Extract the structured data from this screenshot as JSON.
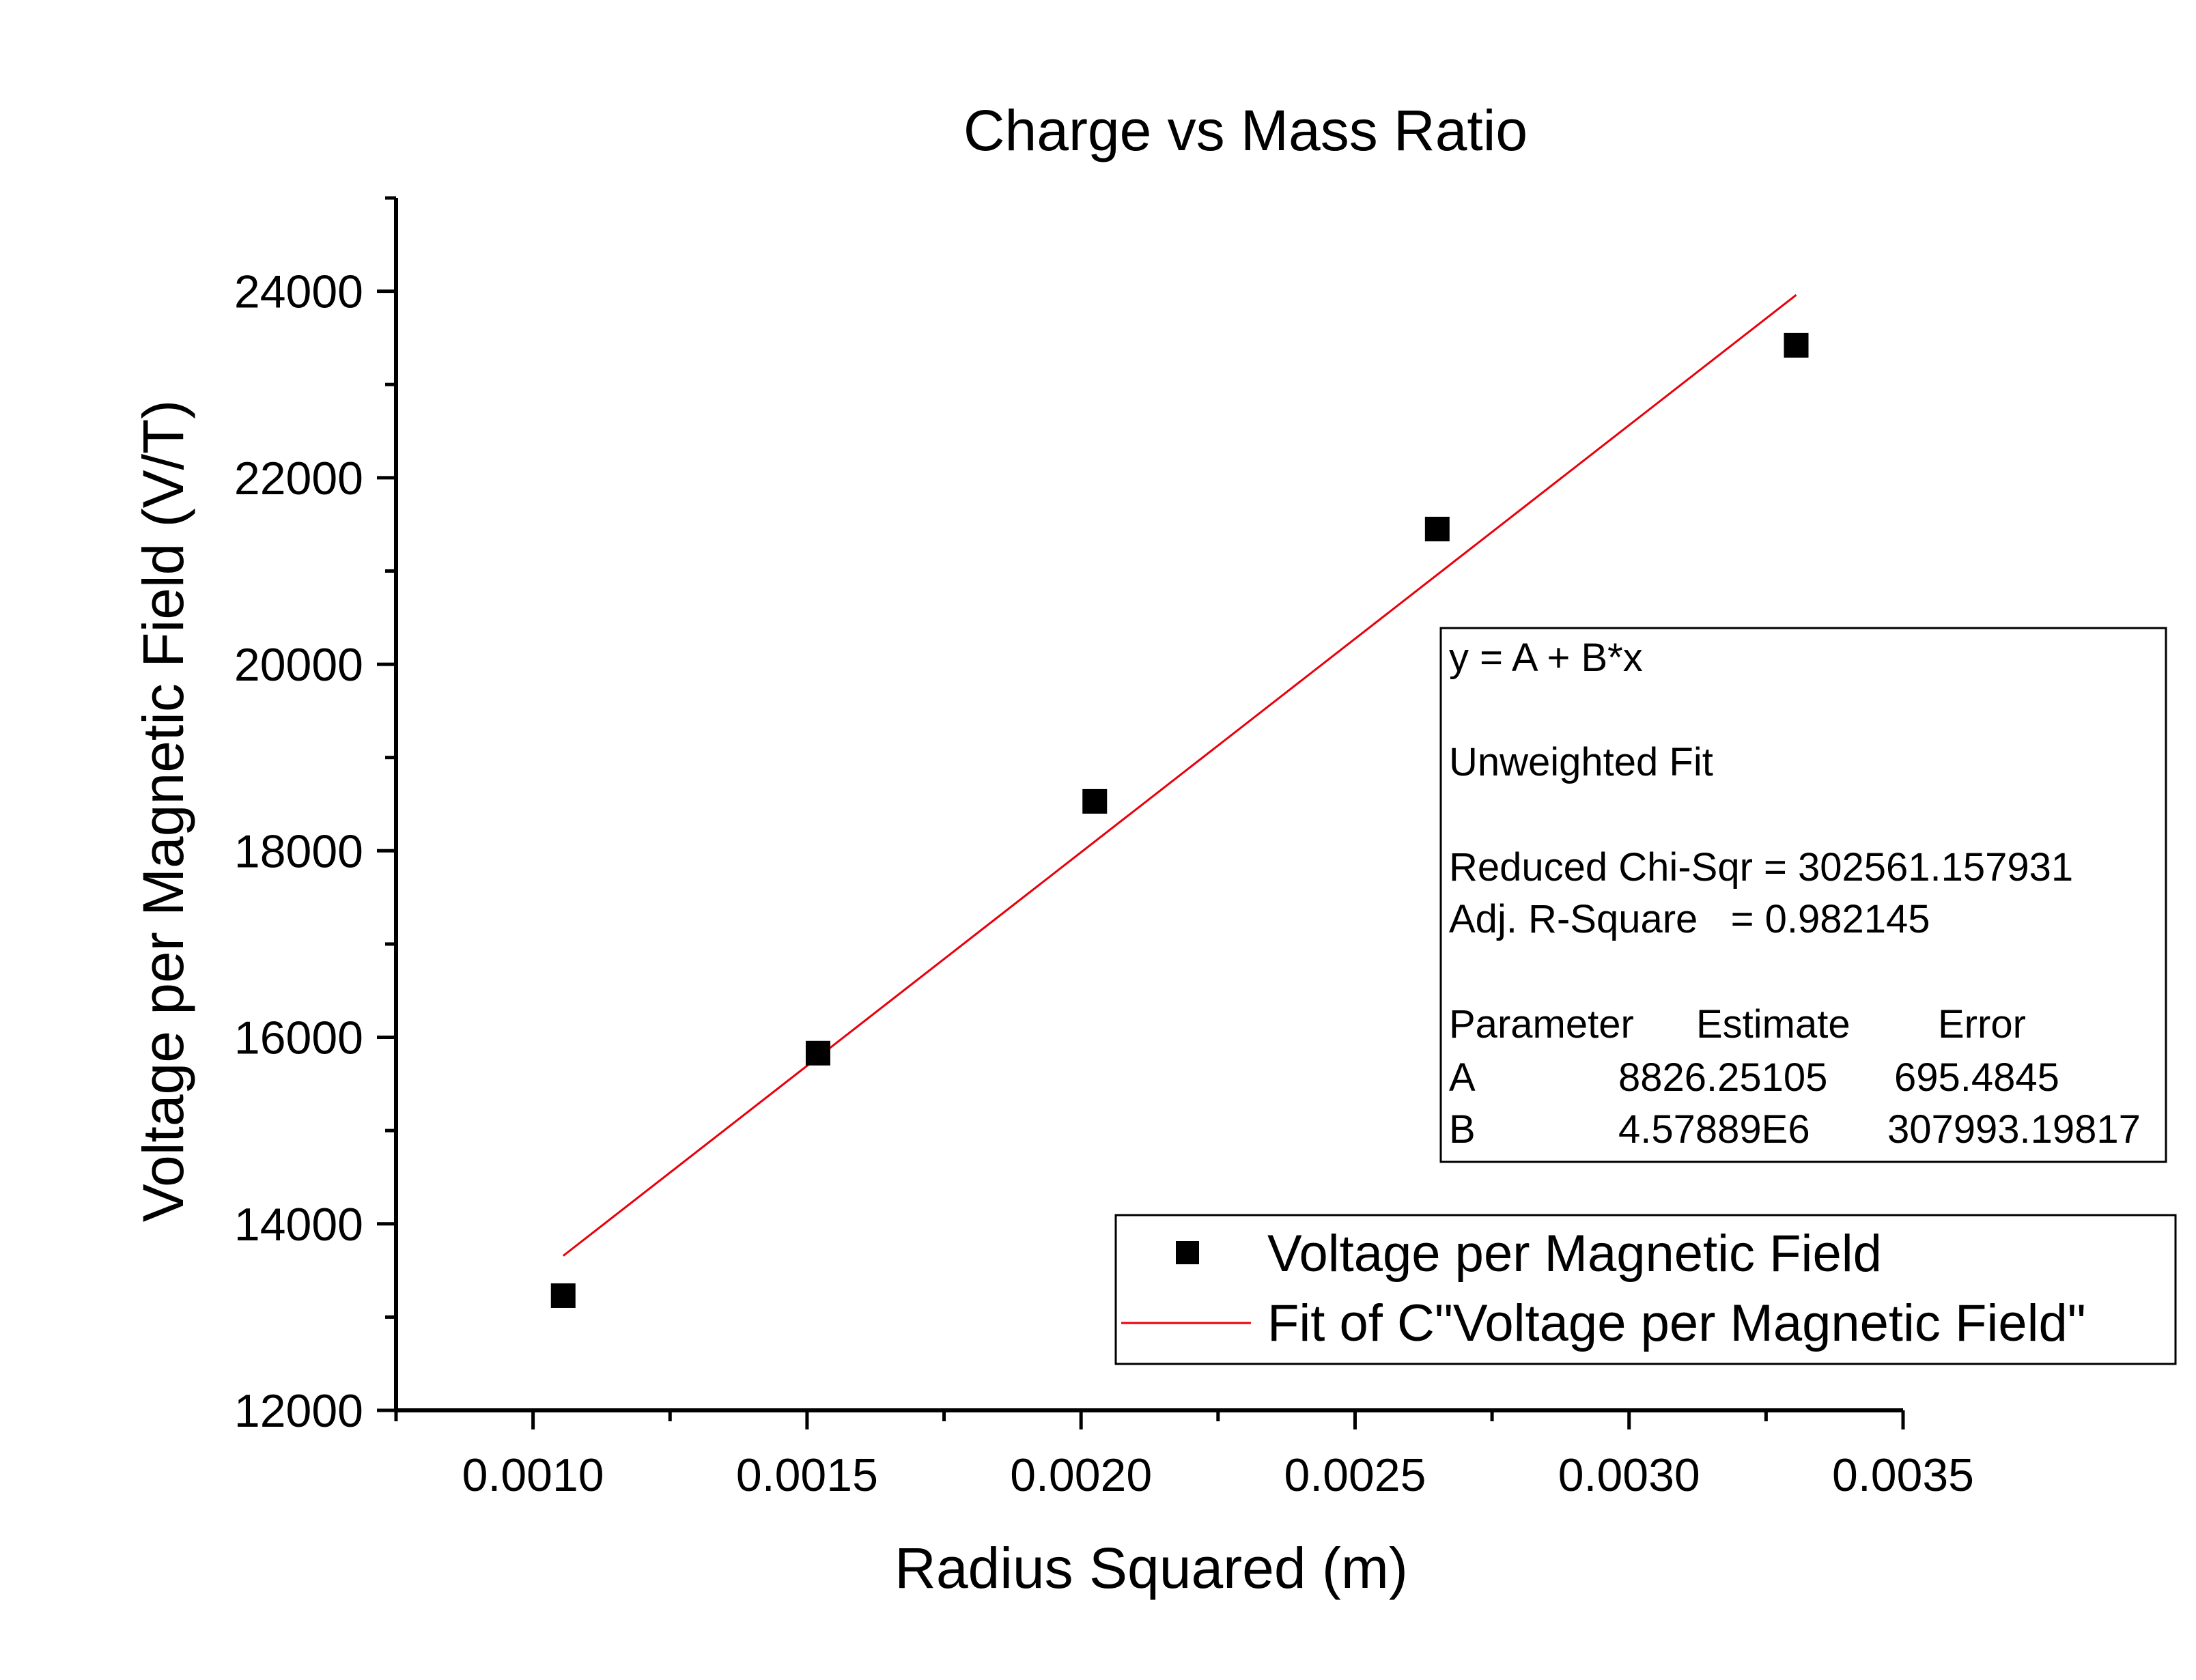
{
  "chart_data": {
    "type": "scatter",
    "title": "Charge vs Mass Ratio",
    "xlabel": "Radius Squared (m)",
    "ylabel": "Voltage per Magnetic Field (V/T)",
    "xlim": [
      0.00075,
      0.0035
    ],
    "ylim": [
      12000,
      25000
    ],
    "x_ticks": [
      0.001,
      0.0015,
      0.002,
      0.0025,
      0.003,
      0.0035
    ],
    "x_tick_labels": [
      "0.0010",
      "0.0015",
      "0.0020",
      "0.0025",
      "0.0030",
      "0.0035"
    ],
    "y_ticks": [
      12000,
      14000,
      16000,
      18000,
      20000,
      22000,
      24000
    ],
    "y_tick_labels": [
      "12000",
      "14000",
      "16000",
      "18000",
      "20000",
      "22000",
      "24000"
    ],
    "grid": false,
    "series": [
      {
        "name": "Voltage per Magnetic Field",
        "kind": "scatter",
        "marker": "square",
        "color": "#000000",
        "x": [
          0.001055,
          0.00152,
          0.002025,
          0.00265,
          0.003305
        ],
        "y": [
          13230,
          15830,
          18530,
          21450,
          23420
        ]
      },
      {
        "name": "Fit of C\"Voltage per Magnetic Field\"",
        "kind": "line",
        "color": "#e8000b",
        "x": [
          0.001055,
          0.003305
        ],
        "y": [
          13657,
          23960
        ]
      }
    ],
    "legend": {
      "position": "bottom-right"
    },
    "fit_box": {
      "lines": [
        [
          "y = A + B*x"
        ],
        [
          "Unweighted Fit"
        ],
        [
          "Reduced Chi-Sqr = 302561.157931"
        ],
        [
          "Adj. R-Square   = 0.982145"
        ],
        [
          "Parameter",
          "Estimate",
          "Error"
        ],
        [
          "A",
          "8826.25105",
          "695.4845"
        ],
        [
          "B",
          "4.57889E6",
          "307993.19817"
        ]
      ]
    }
  }
}
